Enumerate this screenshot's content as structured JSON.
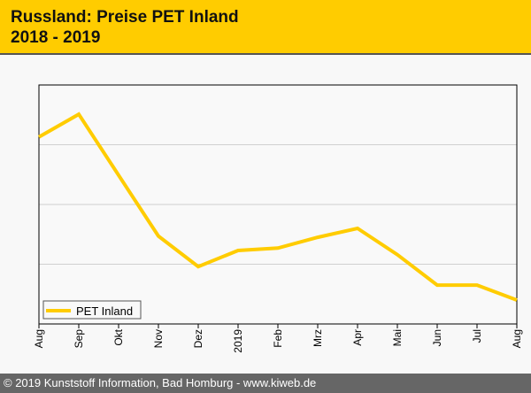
{
  "header": {
    "title_line1": "Russland: Preise PET Inland",
    "title_line2": "2018 - 2019"
  },
  "footer": {
    "text": "© 2019 Kunststoff Information, Bad Homburg - www.kiweb.de"
  },
  "colors": {
    "line": "#ffcc00",
    "header": "#ffcc00",
    "footer": "#666666"
  },
  "chart_data": {
    "type": "line",
    "title": "Russland: Preise PET Inland 2018 - 2019",
    "xlabel": "",
    "ylabel": "",
    "categories": [
      "Aug",
      "Sep",
      "Okt",
      "Nov",
      "Dez",
      "2019",
      "Feb",
      "Mrz",
      "Apr",
      "Mai",
      "Jun",
      "Jul",
      "Aug"
    ],
    "series": [
      {
        "name": "PET Inland",
        "values": [
          3.13,
          3.51,
          2.49,
          1.47,
          0.96,
          1.23,
          1.27,
          1.45,
          1.6,
          1.16,
          0.65,
          0.65,
          0.4
        ]
      }
    ],
    "ylim": [
      0,
      4
    ],
    "y_gridlines": [
      1,
      2,
      3
    ],
    "y_tick_labels_shown": false,
    "grid": true,
    "legend": "bottom-left",
    "note": "relative scale; y axis unlabeled"
  }
}
